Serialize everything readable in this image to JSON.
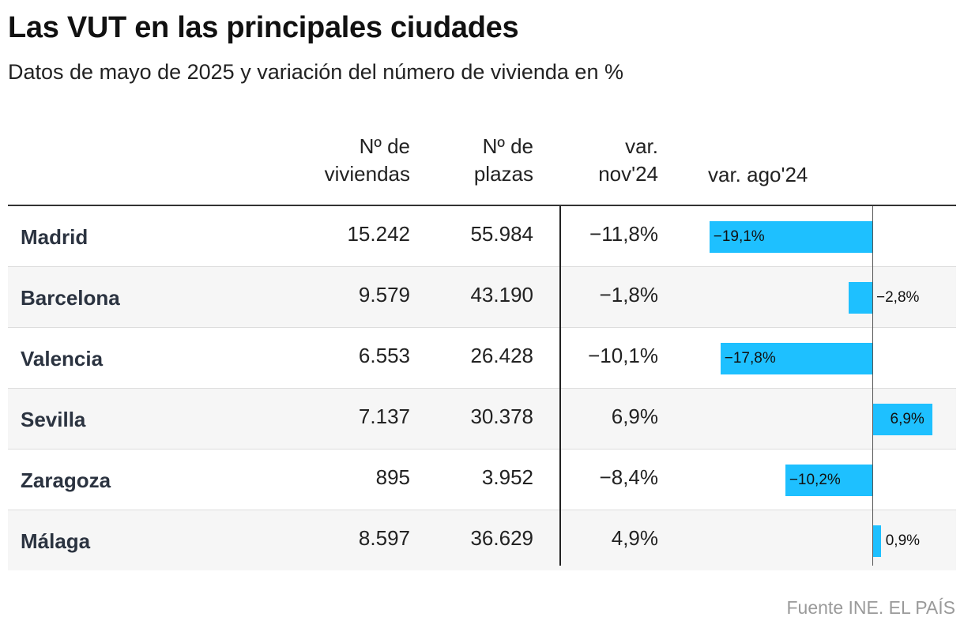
{
  "title": "Las VUT en las principales ciudades",
  "subtitle": "Datos de mayo de 2025 y variación del número de vivienda en %",
  "headers": {
    "viviendas": [
      "Nº de",
      "viviendas"
    ],
    "plazas": [
      "Nº de",
      "plazas"
    ],
    "nov": [
      "var.",
      "nov'24"
    ],
    "ago": "var. ago'24"
  },
  "source": "Fuente INE. EL PAÍS",
  "colors": {
    "bar": "#1ec0ff",
    "row_alt": "#f6f6f6"
  },
  "chart_data": {
    "type": "table",
    "columns": [
      "",
      "Nº de viviendas",
      "Nº de plazas",
      "var. nov'24",
      "var. ago'24"
    ],
    "rows": [
      {
        "city": "Madrid",
        "viviendas": "15.242",
        "plazas": "55.984",
        "var_nov": "−11,8%",
        "var_ago": -19.1,
        "var_ago_label": "−19,1%"
      },
      {
        "city": "Barcelona",
        "viviendas": "9.579",
        "plazas": "43.190",
        "var_nov": "−1,8%",
        "var_ago": -2.8,
        "var_ago_label": "−2,8%"
      },
      {
        "city": "Valencia",
        "viviendas": "6.553",
        "plazas": "26.428",
        "var_nov": "−10,1%",
        "var_ago": -17.8,
        "var_ago_label": "−17,8%"
      },
      {
        "city": "Sevilla",
        "viviendas": "7.137",
        "plazas": "30.378",
        "var_nov": "6,9%",
        "var_ago": 6.9,
        "var_ago_label": "6,9%"
      },
      {
        "city": "Zaragoza",
        "viviendas": "895",
        "plazas": "3.952",
        "var_nov": "−8,4%",
        "var_ago": -10.2,
        "var_ago_label": "−10,2%"
      },
      {
        "city": "Málaga",
        "viviendas": "8.597",
        "plazas": "36.629",
        "var_nov": "4,9%",
        "var_ago": 0.9,
        "var_ago_label": "0,9%"
      }
    ]
  }
}
